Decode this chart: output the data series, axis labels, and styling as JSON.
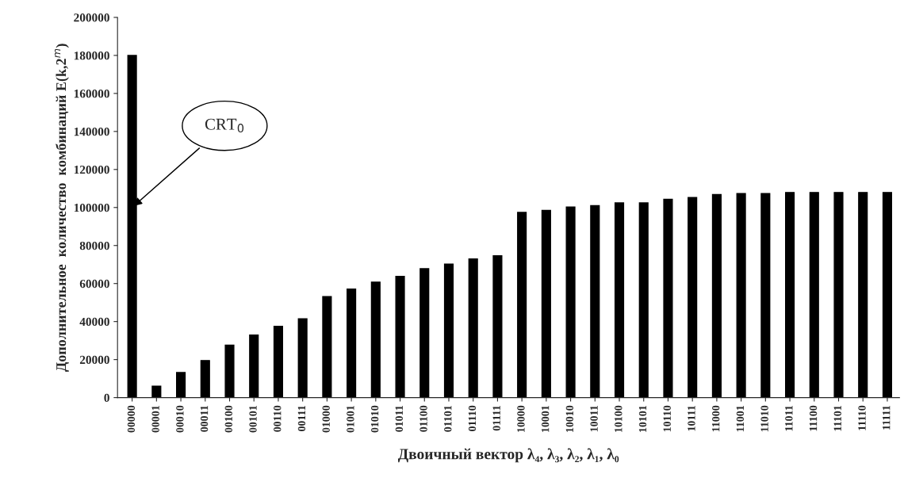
{
  "chart_data": {
    "type": "bar",
    "xlabel": "Двоичный вектор λ₄, λ₃, λ₂, λ₁, λ₀",
    "ylabel": "Дополнительное  количество  комбинаций E(k,2$^{m}$)",
    "categories": [
      "00000",
      "00001",
      "00010",
      "00011",
      "00100",
      "00101",
      "00110",
      "00111",
      "01000",
      "01001",
      "01010",
      "01011",
      "01100",
      "01101",
      "01110",
      "01111",
      "10000",
      "10001",
      "10010",
      "10011",
      "10100",
      "10101",
      "10110",
      "10111",
      "11000",
      "11001",
      "11010",
      "11011",
      "11100",
      "11101",
      "11110",
      "11111"
    ],
    "values": [
      180000,
      6000,
      13200,
      19500,
      27600,
      32900,
      37500,
      41500,
      53100,
      57100,
      60700,
      63800,
      67800,
      70200,
      72900,
      74600,
      97400,
      98500,
      100200,
      101000,
      102400,
      102400,
      104300,
      105200,
      106800,
      107300,
      107300,
      107900,
      107900,
      107900,
      107900,
      107900
    ],
    "color": "#000000",
    "ylim": [
      0,
      200000
    ],
    "yticks": [
      0,
      20000,
      40000,
      60000,
      80000,
      100000,
      120000,
      140000,
      160000,
      180000,
      200000
    ],
    "grid": false,
    "annotations": [
      {
        "text": "CRT$_{0}$",
        "x": "00000",
        "y": 100000
      }
    ]
  }
}
